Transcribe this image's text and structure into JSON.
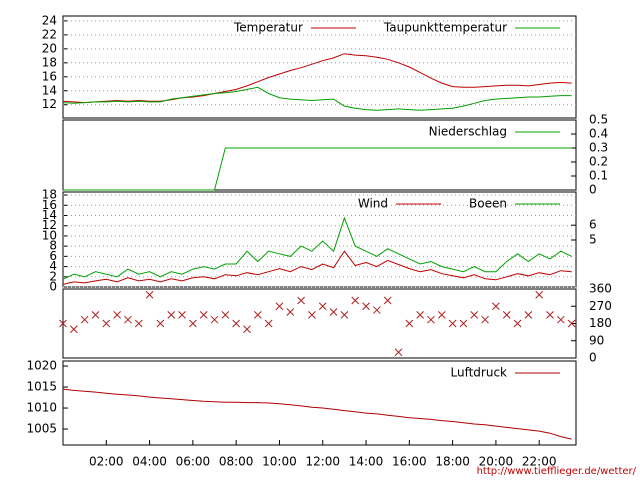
{
  "x_axis": {
    "x": [
      0,
      0.5,
      1,
      1.5,
      2,
      2.5,
      3,
      3.5,
      4,
      4.5,
      5,
      5.5,
      6,
      6.5,
      7,
      7.5,
      8,
      8.5,
      9,
      9.5,
      10,
      10.5,
      11,
      11.5,
      12,
      12.5,
      13,
      13.5,
      14,
      14.5,
      15,
      15.5,
      16,
      16.5,
      17,
      17.5,
      18,
      18.5,
      19,
      19.5,
      20,
      20.5,
      21,
      21.5,
      22,
      22.5,
      23,
      23.5
    ],
    "xlim": [
      0,
      23.7
    ],
    "xticks": [
      {
        "value": 2,
        "label": "02:00"
      },
      {
        "value": 4,
        "label": "04:00"
      },
      {
        "value": 6,
        "label": "06:00"
      },
      {
        "value": 8,
        "label": "08:00"
      },
      {
        "value": 10,
        "label": "10:00"
      },
      {
        "value": 12,
        "label": "12:00"
      },
      {
        "value": 14,
        "label": "14:00"
      },
      {
        "value": 16,
        "label": "16:00"
      },
      {
        "value": 18,
        "label": "18:00"
      },
      {
        "value": 20,
        "label": "20:00"
      },
      {
        "value": 22,
        "label": "22:00"
      }
    ]
  },
  "chart_data": [
    {
      "type": "line",
      "ylim": [
        10.1,
        24.7
      ],
      "yticks": [
        12,
        14,
        16,
        18,
        20,
        22,
        24
      ],
      "ytick_side": "left",
      "grid": true,
      "series": [
        {
          "name": "Temperatur",
          "color": "#c00000",
          "values": [
            12.5,
            12.4,
            12.3,
            12.4,
            12.5,
            12.6,
            12.5,
            12.6,
            12.5,
            12.5,
            12.7,
            13,
            13.1,
            13.3,
            13.6,
            13.9,
            14.2,
            14.7,
            15.3,
            15.9,
            16.4,
            16.9,
            17.3,
            17.8,
            18.3,
            18.7,
            19.3,
            19.1,
            19,
            18.8,
            18.5,
            18,
            17.4,
            16.6,
            15.8,
            15.1,
            14.6,
            14.5,
            14.5,
            14.6,
            14.7,
            14.8,
            14.8,
            14.7,
            14.9,
            15.1,
            15.2,
            15.1
          ]
        },
        {
          "name": "Taupunkttemperatur",
          "color": "#00a000",
          "values": [
            12.3,
            12.2,
            12.3,
            12.4,
            12.4,
            12.5,
            12.4,
            12.5,
            12.4,
            12.4,
            12.8,
            13,
            13.2,
            13.4,
            13.6,
            13.7,
            13.9,
            14.2,
            14.5,
            13.6,
            13,
            12.8,
            12.7,
            12.6,
            12.7,
            12.8,
            11.8,
            11.5,
            11.3,
            11.2,
            11.3,
            11.4,
            11.3,
            11.2,
            11.3,
            11.4,
            11.5,
            11.8,
            12.2,
            12.6,
            12.8,
            12.9,
            13,
            13.1,
            13.1,
            13.2,
            13.3,
            13.3
          ]
        }
      ]
    },
    {
      "type": "line",
      "ylim": [
        0,
        0.5
      ],
      "yticks": [
        0,
        0.1,
        0.2,
        0.3,
        0.4,
        0.5
      ],
      "ytick_side": "right",
      "grid": false,
      "series": [
        {
          "name": "Niederschlag",
          "color": "#00a000",
          "values": [
            0,
            0,
            0,
            0,
            0,
            0,
            0,
            0,
            0,
            0,
            0,
            0,
            0,
            0,
            0,
            0.3,
            0.3,
            0.3,
            0.3,
            0.3,
            0.3,
            0.3,
            0.3,
            0.3,
            0.3,
            0.3,
            0.3,
            0.3,
            0.3,
            0.3,
            0.3,
            0.3,
            0.3,
            0.3,
            0.3,
            0.3,
            0.3,
            0.3,
            0.3,
            0.3,
            0.3,
            0.3,
            0.3,
            0.3,
            0.3,
            0.3,
            0.3,
            0.3
          ]
        }
      ]
    },
    {
      "type": "line",
      "ylim": [
        0,
        18.6
      ],
      "yticks": [
        0,
        2,
        4,
        6,
        8,
        10,
        12,
        14,
        16,
        18
      ],
      "ytick_side": "left",
      "grid": true,
      "beaufort_ticks": [
        {
          "beaufort": 5,
          "at": 9.2
        },
        {
          "beaufort": 6,
          "at": 12.1
        }
      ],
      "series": [
        {
          "name": "Wind",
          "color": "#c00000",
          "values": [
            0.5,
            1,
            0.8,
            1.2,
            1.5,
            1,
            1.8,
            1.2,
            1.5,
            1,
            1.6,
            1.2,
            1.8,
            2,
            1.6,
            2.4,
            2.2,
            2.8,
            2.4,
            3,
            3.6,
            3,
            4,
            3.4,
            4.5,
            3.8,
            7,
            4.2,
            4.8,
            4,
            5.2,
            4.4,
            3.6,
            3,
            3.4,
            2.6,
            2.2,
            1.8,
            2.4,
            1.6,
            1.4,
            2,
            2.6,
            2.2,
            2.8,
            2.4,
            3.2,
            3
          ]
        },
        {
          "name": "Boeen",
          "color": "#00a000",
          "values": [
            1.5,
            2.5,
            2,
            3,
            2.5,
            2,
            3.5,
            2.5,
            3,
            2,
            3,
            2.5,
            3.5,
            4,
            3.5,
            4.5,
            4.5,
            7,
            5,
            7,
            6.5,
            6,
            8,
            7,
            9,
            7,
            13.5,
            8,
            7,
            6,
            7.5,
            6.5,
            5.5,
            4.5,
            5,
            4,
            3.5,
            3,
            4,
            3,
            3,
            5,
            6.5,
            5,
            6.5,
            5.5,
            7,
            6
          ]
        }
      ]
    },
    {
      "type": "scatter",
      "ylim": [
        0,
        360
      ],
      "yticks": [
        0,
        90,
        180,
        270,
        360
      ],
      "ytick_side": "right",
      "grid": false,
      "series": [
        {
          "color": "#b02020",
          "values": [
            180,
            150,
            200,
            225,
            180,
            225,
            200,
            180,
            330,
            180,
            225,
            225,
            180,
            225,
            200,
            225,
            180,
            150,
            225,
            180,
            270,
            240,
            300,
            225,
            270,
            240,
            225,
            300,
            270,
            250,
            300,
            30,
            180,
            225,
            200,
            225,
            180,
            180,
            225,
            200,
            270,
            225,
            180,
            225,
            330,
            225,
            200,
            180
          ]
        }
      ]
    },
    {
      "type": "line",
      "ylim": [
        1001.2,
        1021.2
      ],
      "yticks": [
        1005,
        1010,
        1015,
        1020
      ],
      "ytick_side": "left",
      "grid": false,
      "series": [
        {
          "name": "Luftdruck",
          "color": "#b00000",
          "values": [
            1014.5,
            1014.2,
            1014,
            1013.8,
            1013.5,
            1013.3,
            1013.1,
            1012.9,
            1012.6,
            1012.4,
            1012.2,
            1012,
            1011.8,
            1011.6,
            1011.5,
            1011.4,
            1011.4,
            1011.3,
            1011.3,
            1011.2,
            1011,
            1010.8,
            1010.5,
            1010.2,
            1010,
            1009.7,
            1009.4,
            1009.1,
            1008.8,
            1008.6,
            1008.3,
            1008,
            1007.7,
            1007.5,
            1007.3,
            1007,
            1006.8,
            1006.5,
            1006.2,
            1006,
            1005.7,
            1005.4,
            1005.1,
            1004.8,
            1004.5,
            1004,
            1003.2,
            1002.6
          ]
        }
      ]
    }
  ],
  "footer_url": "http://www.tiefflieger.de/wetter/"
}
